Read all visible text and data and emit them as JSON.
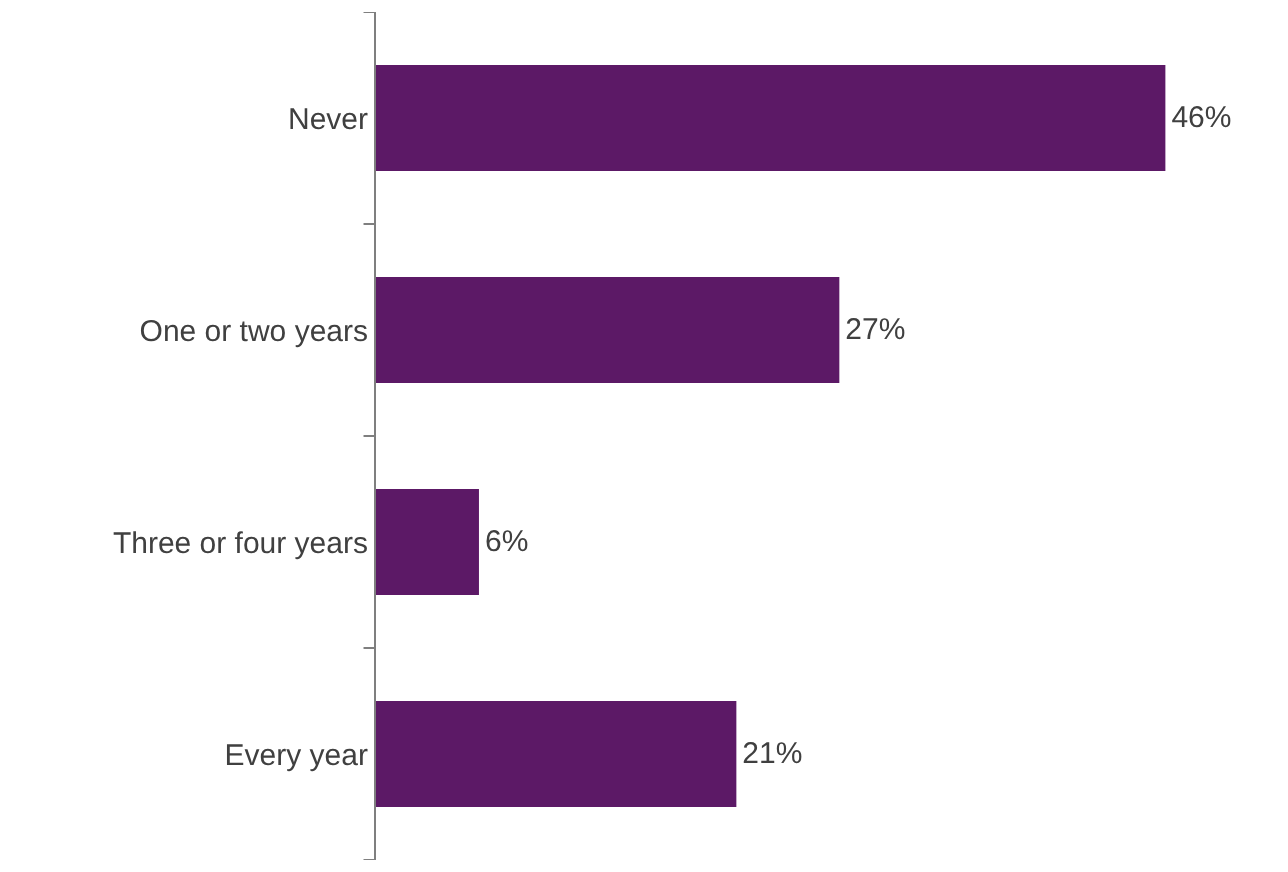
{
  "chart_data": {
    "type": "bar",
    "orientation": "horizontal",
    "categories": [
      "Never",
      "One or two years",
      "Three or four years",
      "Every year"
    ],
    "values": [
      46,
      27,
      6,
      21
    ],
    "value_labels": [
      "46%",
      "27%",
      "6%",
      "21%"
    ],
    "color": "#5c1966",
    "grid": false,
    "legend": false
  }
}
